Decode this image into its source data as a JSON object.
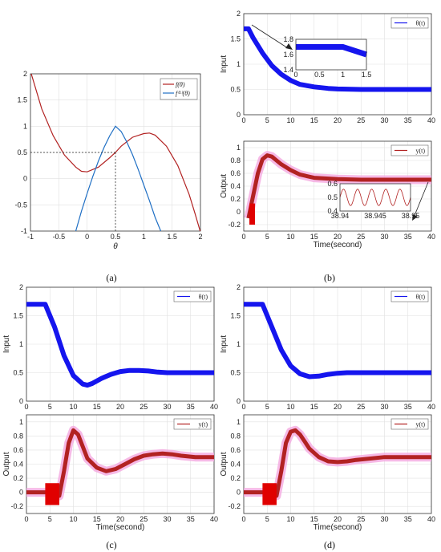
{
  "chart_data": [
    {
      "id": "a",
      "type": "line",
      "caption": "(a)",
      "xlabel": "θ",
      "xlim": [
        -1,
        2
      ],
      "ylim": [
        -1,
        2
      ],
      "xticks": [
        -1,
        -0.5,
        0,
        0.5,
        1,
        1.5,
        2
      ],
      "yticks": [
        -1,
        -0.5,
        0,
        0.5,
        1,
        1.5,
        2
      ],
      "grid": true,
      "legend": "top-right",
      "series": [
        {
          "name": "f(θ)",
          "color": "#b22222",
          "x": [
            -1,
            -0.8,
            -0.6,
            -0.4,
            -0.2,
            -0.1,
            0,
            0.2,
            0.4,
            0.5,
            0.6,
            0.8,
            1,
            1.1,
            1.2,
            1.4,
            1.6,
            1.8,
            1.9,
            2
          ],
          "y": [
            2.05,
            1.33,
            0.82,
            0.45,
            0.22,
            0.14,
            0.13,
            0.22,
            0.4,
            0.5,
            0.62,
            0.79,
            0.86,
            0.87,
            0.83,
            0.62,
            0.25,
            -0.3,
            -0.65,
            -1.02
          ]
        },
        {
          "name": "f⁽¹⁾(θ)",
          "color": "#1f6fc4",
          "x": [
            -0.2,
            -0.1,
            0,
            0.1,
            0.2,
            0.3,
            0.4,
            0.5,
            0.6,
            0.7,
            0.8,
            0.9,
            1,
            1.1,
            1.2,
            1.3
          ],
          "y": [
            -1,
            -0.62,
            -0.28,
            0.04,
            0.34,
            0.6,
            0.82,
            1,
            0.9,
            0.7,
            0.46,
            0.18,
            -0.12,
            -0.42,
            -0.74,
            -1
          ]
        }
      ],
      "annotations": [
        {
          "x": 0.5,
          "y": 0.5
        }
      ]
    },
    {
      "id": "b",
      "caption": "(b)",
      "input": {
        "type": "line",
        "ylabel": "Input",
        "xlim": [
          0,
          40
        ],
        "ylim": [
          0,
          2
        ],
        "xticks": [
          0,
          5,
          10,
          15,
          20,
          25,
          30,
          35,
          40
        ],
        "yticks": [
          0,
          0.5,
          1,
          1.5,
          2
        ],
        "series": [
          {
            "name": "θ(t)",
            "color": "#1515ee",
            "x": [
              0,
              1,
              2,
              4,
              6,
              8,
              10,
              12,
              15,
              18,
              20,
              25,
              30,
              35,
              40
            ],
            "y": [
              1.7,
              1.7,
              1.52,
              1.22,
              0.97,
              0.8,
              0.68,
              0.6,
              0.55,
              0.52,
              0.51,
              0.5,
              0.5,
              0.5,
              0.5
            ]
          }
        ],
        "inset": {
          "xlim": [
            0,
            1.5
          ],
          "ylim": [
            1.4,
            1.8
          ],
          "xticks": [
            0,
            0.5,
            1,
            1.5
          ],
          "yticks": [
            1.4,
            1.6,
            1.8
          ],
          "x": [
            0,
            1,
            1.5
          ],
          "y": [
            1.7,
            1.7,
            1.6
          ]
        }
      },
      "output": {
        "type": "line",
        "ylabel": "Output",
        "xlabel": "Time(second)",
        "xlim": [
          0,
          40
        ],
        "ylim": [
          -0.3,
          1.1
        ],
        "xticks": [
          0,
          5,
          10,
          15,
          20,
          25,
          30,
          35,
          40
        ],
        "yticks": [
          -0.2,
          0,
          0.2,
          0.4,
          0.6,
          0.8,
          1
        ],
        "series": [
          {
            "name": "y(t)",
            "color": "#b22222",
            "x": [
              1,
              2,
              3,
              4,
              5,
              6,
              7,
              8,
              10,
              12,
              15,
              20,
              25,
              30,
              35,
              40
            ],
            "y": [
              -0.1,
              0.25,
              0.6,
              0.82,
              0.88,
              0.86,
              0.8,
              0.74,
              0.65,
              0.58,
              0.53,
              0.51,
              0.5,
              0.5,
              0.5,
              0.5
            ]
          }
        ],
        "inset": {
          "xlim": [
            38.94,
            38.95
          ],
          "ylim": [
            0.4,
            0.6
          ],
          "xticks": [
            "38.94",
            "38.945",
            "38.95"
          ],
          "yticks": [
            0.4,
            0.5,
            0.6
          ],
          "cycles": 5
        }
      }
    },
    {
      "id": "c",
      "caption": "(c)",
      "input": {
        "type": "line",
        "ylabel": "Input",
        "xlim": [
          0,
          40
        ],
        "ylim": [
          0,
          2
        ],
        "xticks": [
          0,
          5,
          10,
          15,
          20,
          25,
          30,
          35,
          40
        ],
        "yticks": [
          0,
          0.5,
          1,
          1.5,
          2
        ],
        "series": [
          {
            "name": "θ(t)",
            "color": "#1515ee",
            "x": [
              0,
              2,
              4,
              6,
              8,
              10,
              12,
              13,
              14,
              16,
              18,
              20,
              22,
              24,
              26,
              28,
              30,
              32,
              35,
              40
            ],
            "y": [
              1.7,
              1.7,
              1.7,
              1.3,
              0.8,
              0.45,
              0.3,
              0.28,
              0.31,
              0.4,
              0.47,
              0.52,
              0.54,
              0.54,
              0.53,
              0.51,
              0.5,
              0.5,
              0.5,
              0.5
            ]
          }
        ]
      },
      "output": {
        "type": "line",
        "ylabel": "Output",
        "xlabel": "Time(second)",
        "xlim": [
          0,
          40
        ],
        "ylim": [
          -0.3,
          1.1
        ],
        "xticks": [
          0,
          5,
          10,
          15,
          20,
          25,
          30,
          35,
          40
        ],
        "yticks": [
          -0.2,
          0,
          0.2,
          0.4,
          0.6,
          0.8,
          1
        ],
        "series": [
          {
            "name": "y(t)",
            "color": "#b22222",
            "x": [
              0,
              4,
              7,
              8,
              9,
              10,
              11,
              12,
              13,
              15,
              17,
              19,
              21,
              23,
              25,
              27,
              29,
              31,
              33,
              36,
              40
            ],
            "y": [
              0,
              0,
              -0.05,
              0.3,
              0.7,
              0.88,
              0.82,
              0.65,
              0.48,
              0.35,
              0.3,
              0.33,
              0.4,
              0.47,
              0.52,
              0.54,
              0.55,
              0.54,
              0.52,
              0.5,
              0.5
            ]
          }
        ]
      }
    },
    {
      "id": "d",
      "caption": "(d)",
      "input": {
        "type": "line",
        "ylabel": "Input",
        "xlim": [
          0,
          40
        ],
        "ylim": [
          0,
          2
        ],
        "xticks": [
          0,
          5,
          10,
          15,
          20,
          25,
          30,
          35,
          40
        ],
        "yticks": [
          0,
          0.5,
          1,
          1.5,
          2
        ],
        "series": [
          {
            "name": "θ(t)",
            "color": "#1515ee",
            "x": [
              0,
              2,
              4,
              6,
              8,
              10,
              12,
              14,
              16,
              18,
              20,
              22,
              25,
              30,
              35,
              40
            ],
            "y": [
              1.7,
              1.7,
              1.7,
              1.3,
              0.9,
              0.62,
              0.48,
              0.43,
              0.44,
              0.47,
              0.49,
              0.5,
              0.5,
              0.5,
              0.5,
              0.5
            ]
          }
        ]
      },
      "output": {
        "type": "line",
        "ylabel": "Output",
        "xlabel": "Time(second)",
        "xlim": [
          0,
          40
        ],
        "ylim": [
          -0.3,
          1.1
        ],
        "xticks": [
          0,
          5,
          10,
          15,
          20,
          25,
          30,
          35,
          40
        ],
        "yticks": [
          -0.2,
          0,
          0.2,
          0.4,
          0.6,
          0.8,
          1
        ],
        "series": [
          {
            "name": "y(t)",
            "color": "#b22222",
            "x": [
              0,
              4,
              7,
              8,
              9,
              10,
              11,
              12,
              13,
              14,
              16,
              18,
              20,
              22,
              24,
              27,
              30,
              35,
              40
            ],
            "y": [
              0,
              0,
              -0.05,
              0.3,
              0.7,
              0.86,
              0.88,
              0.82,
              0.72,
              0.62,
              0.5,
              0.44,
              0.43,
              0.44,
              0.46,
              0.48,
              0.5,
              0.5,
              0.5
            ]
          }
        ]
      }
    }
  ]
}
